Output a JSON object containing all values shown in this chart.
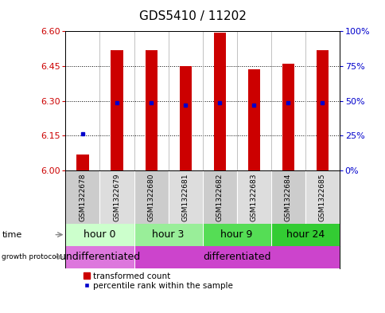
{
  "title": "GDS5410 / 11202",
  "samples": [
    "GSM1322678",
    "GSM1322679",
    "GSM1322680",
    "GSM1322681",
    "GSM1322682",
    "GSM1322683",
    "GSM1322684",
    "GSM1322685"
  ],
  "bar_bottoms": [
    6.0,
    6.0,
    6.0,
    6.0,
    6.0,
    6.0,
    6.0,
    6.0
  ],
  "bar_tops": [
    6.07,
    6.52,
    6.52,
    6.45,
    6.595,
    6.435,
    6.46,
    6.52
  ],
  "percentile_values": [
    6.16,
    6.293,
    6.293,
    6.283,
    6.293,
    6.283,
    6.293,
    6.293
  ],
  "ylim_left": [
    6.0,
    6.6
  ],
  "ylim_right": [
    0,
    100
  ],
  "left_yticks": [
    6.0,
    6.15,
    6.3,
    6.45,
    6.6
  ],
  "right_yticks": [
    0,
    25,
    50,
    75,
    100
  ],
  "right_yticklabels": [
    "0%",
    "25%",
    "50%",
    "75%",
    "100%"
  ],
  "bar_color": "#cc0000",
  "percentile_color": "#0000cc",
  "bar_width": 0.35,
  "time_groups": [
    {
      "label": "hour 0",
      "start": 0,
      "end": 2,
      "color": "#ccffcc"
    },
    {
      "label": "hour 3",
      "start": 2,
      "end": 4,
      "color": "#99ee99"
    },
    {
      "label": "hour 9",
      "start": 4,
      "end": 6,
      "color": "#55dd55"
    },
    {
      "label": "hour 24",
      "start": 6,
      "end": 8,
      "color": "#33cc33"
    }
  ],
  "growth_groups": [
    {
      "label": "undifferentiated",
      "start": 0,
      "end": 2,
      "color": "#dd77dd"
    },
    {
      "label": "differentiated",
      "start": 2,
      "end": 8,
      "color": "#cc44cc"
    }
  ],
  "legend_bar_color": "#cc0000",
  "legend_dot_color": "#0000cc",
  "legend_label1": "transformed count",
  "legend_label2": "percentile rank within the sample",
  "bg_color": "#ffffff",
  "tick_color_left": "#cc0000",
  "tick_color_right": "#0000cc",
  "title_fontsize": 11,
  "tick_fontsize": 8,
  "sample_fontsize": 6.5,
  "label_fontsize": 8,
  "time_fontsize": 9,
  "growth_fontsize": 9,
  "sample_cell_colors": [
    "#cccccc",
    "#dddddd",
    "#cccccc",
    "#dddddd",
    "#cccccc",
    "#dddddd",
    "#cccccc",
    "#dddddd"
  ]
}
